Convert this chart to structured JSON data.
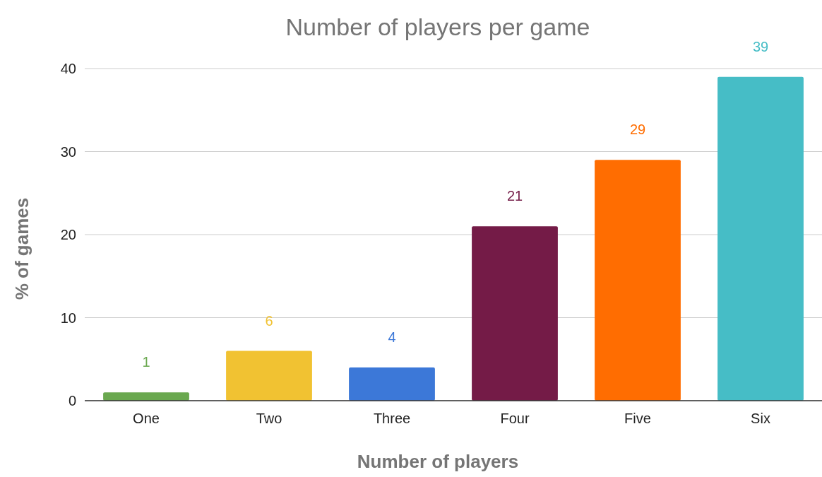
{
  "chart_data": {
    "type": "bar",
    "title": "Number of players per game",
    "xlabel": "Number of players",
    "ylabel": "% of games",
    "categories": [
      "One",
      "Two",
      "Three",
      "Four",
      "Five",
      "Six"
    ],
    "values": [
      1,
      6,
      4,
      21,
      29,
      39
    ],
    "colors": [
      "#6aa84f",
      "#f1c232",
      "#3c78d8",
      "#741b47",
      "#ff6d01",
      "#46bdc6"
    ],
    "ylim": [
      0,
      40
    ],
    "yticks": [
      0,
      10,
      20,
      30,
      40
    ],
    "grid": "y",
    "data_labels": true
  }
}
